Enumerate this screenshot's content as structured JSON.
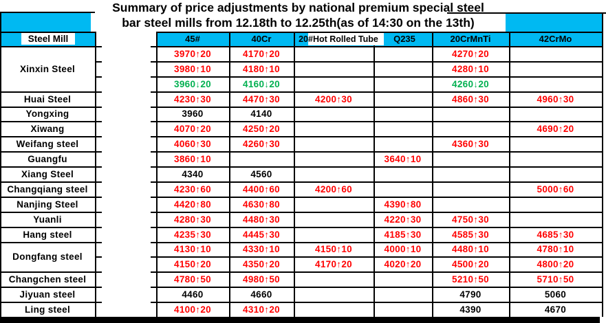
{
  "title": {
    "line1": "Summary of price adjustments by national premium special steel",
    "line2": "bar steel mills from 12.18th to 12.25th(as of 14:30 on the 13th)"
  },
  "colors": {
    "header_cyan": "#00b9f2",
    "price_up_red": "#ff0000",
    "price_down_green": "#00b050",
    "price_flat_black": "#000000"
  },
  "chart_data": {
    "type": "table",
    "title": "Summary of price adjustments by national premium special steel bar steel mills from 12.18th to 12.25th(as of 14:30 on the 13th)",
    "columns": [
      "Steel Mill",
      "45#",
      "40Cr",
      "20#Hot Rolled Tube",
      "Q235",
      "20CrMnTi",
      "42CrMo"
    ],
    "rows": [
      {
        "mill": "Xinxin Steel",
        "span": 3,
        "values": [
          "3970↑20",
          "4170↑20",
          "",
          "",
          "4270↑20",
          ""
        ]
      },
      {
        "mill": null,
        "values": [
          "3980↑10",
          "4180↑10",
          "",
          "",
          "4280↑10",
          ""
        ]
      },
      {
        "mill": null,
        "values": [
          "3960↓20",
          "4160↓20",
          "",
          "",
          "4260↓20",
          ""
        ]
      },
      {
        "mill": "Huai Steel",
        "values": [
          "4230↑30",
          "4470↑30",
          "4200↑30",
          "",
          "4860↑30",
          "4960↑30"
        ]
      },
      {
        "mill": "Yongxing",
        "values": [
          "3960",
          "4140",
          "",
          "",
          "",
          ""
        ]
      },
      {
        "mill": "Xiwang",
        "values": [
          "4070↑20",
          "4250↑20",
          "",
          "",
          "",
          "4690↑20"
        ]
      },
      {
        "mill": "Weifang steel",
        "values": [
          "4060↑30",
          "4260↑30",
          "",
          "",
          "4360↑30",
          ""
        ]
      },
      {
        "mill": "Guangfu",
        "values": [
          "3860↑10",
          "",
          "",
          "3640↑10",
          "",
          ""
        ]
      },
      {
        "mill": "Xiang Steel",
        "values": [
          "4340",
          "4560",
          "",
          "",
          "",
          ""
        ]
      },
      {
        "mill": "Changqiang steel",
        "values": [
          "4230↑60",
          "4400↑60",
          "4200↑60",
          "",
          "",
          "5000↑60"
        ]
      },
      {
        "mill": "Nanjing Steel",
        "values": [
          "4420↑80",
          "4630↑80",
          "",
          "4390↑80",
          "",
          ""
        ]
      },
      {
        "mill": "Yuanli",
        "values": [
          "4280↑30",
          "4480↑30",
          "",
          "4220↑30",
          "4750↑30",
          ""
        ]
      },
      {
        "mill": "Hang steel",
        "values": [
          "4235↑30",
          "4445↑30",
          "",
          "4185↑30",
          "4585↑30",
          "4685↑30"
        ]
      },
      {
        "mill": "Dongfang steel",
        "span": 2,
        "values": [
          "4130↑10",
          "4330↑10",
          "4150↑10",
          "4000↑10",
          "4480↑10",
          "4780↑10"
        ]
      },
      {
        "mill": null,
        "values": [
          "4150↑20",
          "4350↑20",
          "4170↑20",
          "4020↑20",
          "4500↑20",
          "4800↑20"
        ]
      },
      {
        "mill": "Changchen steel",
        "values": [
          "4780↑50",
          "4980↑50",
          "",
          "",
          "5210↑50",
          "5710↑50"
        ]
      },
      {
        "mill": "Jiyuan steel",
        "values": [
          "4460",
          "4660",
          "",
          "",
          "4790",
          "5060"
        ]
      },
      {
        "mill": "Ling steel",
        "values": [
          "4100↑20",
          "4310↑20",
          "",
          "",
          "4390",
          "4670"
        ]
      }
    ]
  }
}
